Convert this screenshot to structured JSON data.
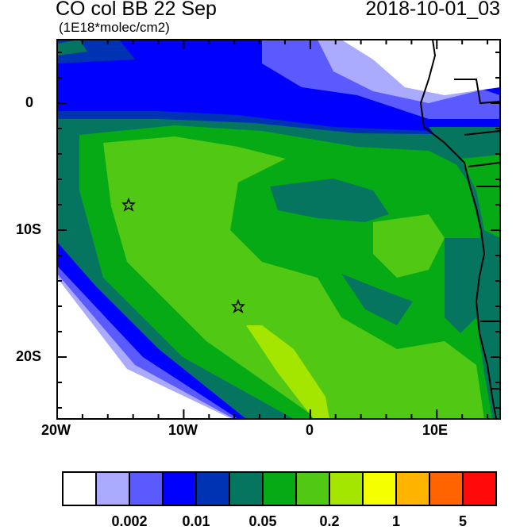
{
  "title": "CO col BB 22 Sep",
  "units": "(1E18*molec/cm2)",
  "timestamp": "2018-10-01_03",
  "map": {
    "lon_range": [
      -20,
      15
    ],
    "lat_range": [
      -25,
      5
    ],
    "x_tick_labels": [
      "20W",
      "10W",
      "0",
      "10E"
    ],
    "y_tick_labels": [
      "0",
      "10S",
      "20S"
    ],
    "markers": [
      {
        "symbol": "star",
        "lon": -14.4,
        "lat": -8
      },
      {
        "symbol": "star",
        "lon": -5.7,
        "lat": -16
      }
    ]
  },
  "colorbar": {
    "colors": [
      "#ffffff",
      "#aaaaff",
      "#5a5aff",
      "#0000ff",
      "#0033b3",
      "#057560",
      "#05aa14",
      "#50c814",
      "#a5e600",
      "#f5ff00",
      "#ffb400",
      "#ff6400",
      "#ff0a0a"
    ],
    "labels": [
      "0.002",
      "0.01",
      "0.05",
      "0.2",
      "1",
      "5"
    ]
  }
}
